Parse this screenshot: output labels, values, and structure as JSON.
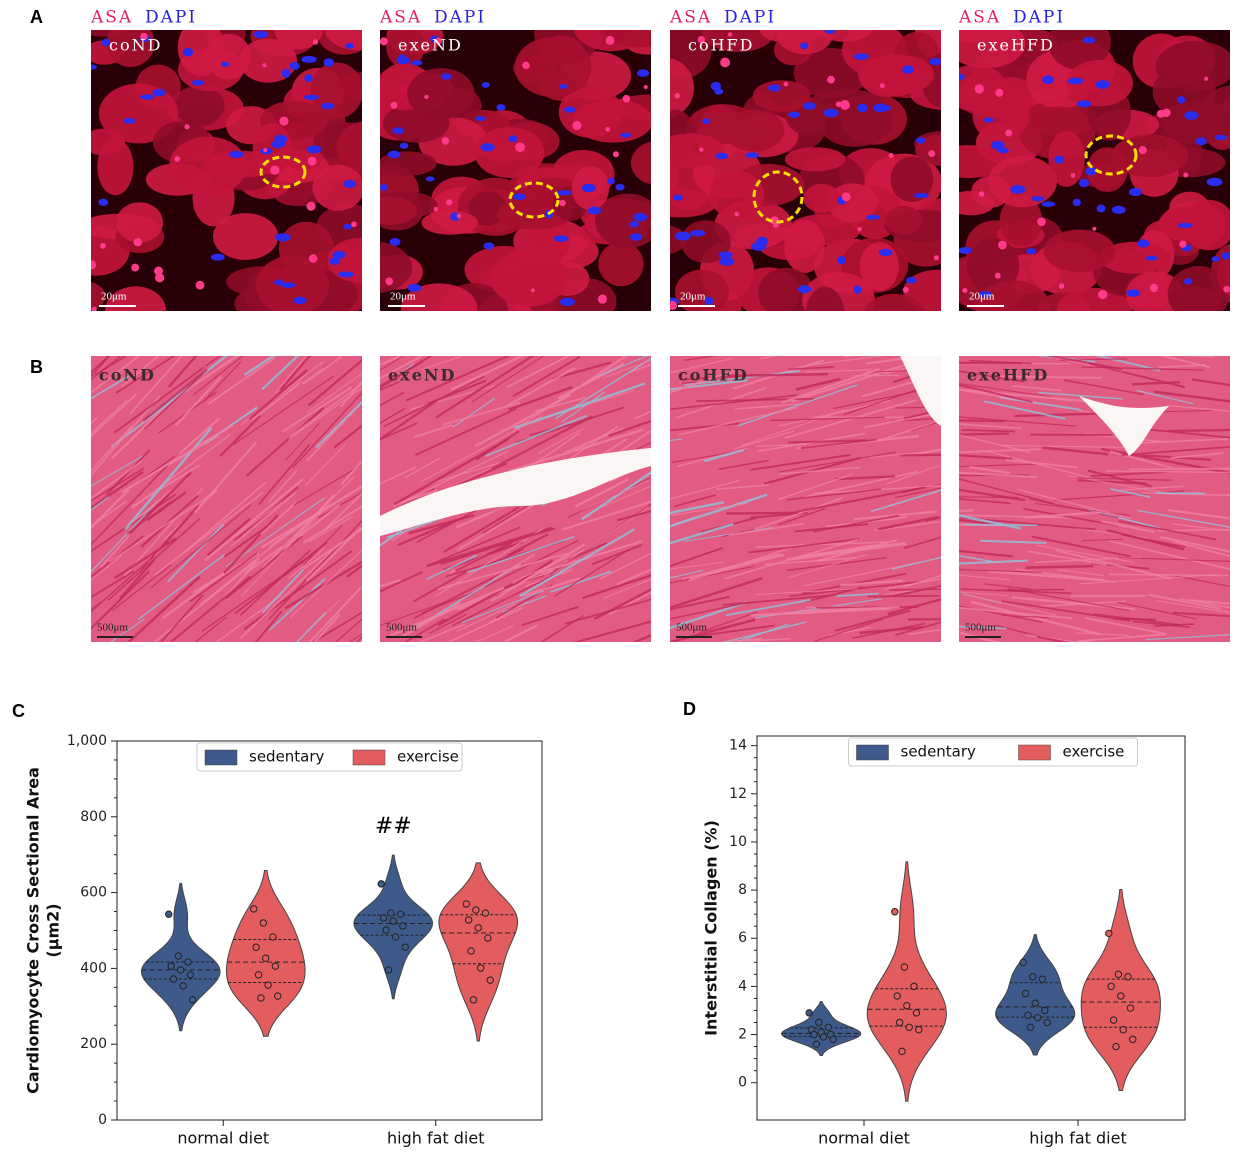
{
  "panel_a": {
    "letter": "A",
    "stain1": "ASA",
    "stain2": "DAPI",
    "images": [
      {
        "label": "coND",
        "scale": "20μm"
      },
      {
        "label": "exeND",
        "scale": "20μm"
      },
      {
        "label": "coHFD",
        "scale": "20μm"
      },
      {
        "label": "exeHFD",
        "scale": "20μm"
      }
    ]
  },
  "panel_b": {
    "letter": "B",
    "images": [
      {
        "label": "coND",
        "scale": "500μm"
      },
      {
        "label": "exeND",
        "scale": "500μm"
      },
      {
        "label": "coHFD",
        "scale": "500μm"
      },
      {
        "label": "exeHFD",
        "scale": "500μm"
      }
    ]
  },
  "chart_data": [
    {
      "panel": "C",
      "type": "violin",
      "ylabel_lines": [
        "Cardiomyocyte Cross Sectional Area",
        "(μm2)"
      ],
      "categories": [
        "normal diet",
        "high fat diet"
      ],
      "series": [
        {
          "name": "sedentary",
          "color": "#3d5a8a",
          "values": [
            [
              543,
              433,
              417,
              406,
              396,
              383,
              372,
              354,
              317
            ],
            [
              623,
              546,
              543,
              533,
              525,
              512,
              501,
              483,
              456,
              396
            ]
          ]
        },
        {
          "name": "exercise",
          "color": "#e35d5f",
          "values": [
            [
              557,
              520,
              483,
              456,
              427,
              406,
              383,
              356,
              327,
              322
            ],
            [
              570,
              554,
              546,
              528,
              507,
              480,
              446,
              401,
              369,
              317
            ]
          ]
        }
      ],
      "ylim": [
        0,
        1000
      ],
      "yticks": [
        0,
        200,
        400,
        600,
        800,
        {
          "value": 1000,
          "label": "1,000"
        }
      ],
      "legend": "upper center",
      "annotations": [
        {
          "text": "##",
          "category": 1,
          "series": 0
        }
      ]
    },
    {
      "panel": "D",
      "type": "violin",
      "ylabel_lines": [
        "Interstitial Collagen (%)"
      ],
      "categories": [
        "normal diet",
        "high fat diet"
      ],
      "series": [
        {
          "name": "sedentary",
          "color": "#3d5a8a",
          "values": [
            [
              2.9,
              2.5,
              2.3,
              2.2,
              2.1,
              2.0,
              2.0,
              1.9,
              1.8,
              1.6
            ],
            [
              5.0,
              4.4,
              4.3,
              3.7,
              3.3,
              3.0,
              2.8,
              2.7,
              2.5,
              2.3
            ]
          ]
        },
        {
          "name": "exercise",
          "color": "#e35d5f",
          "values": [
            [
              7.1,
              4.8,
              4.0,
              3.6,
              3.2,
              2.9,
              2.5,
              2.3,
              2.2,
              1.3
            ],
            [
              6.2,
              4.5,
              4.4,
              4.0,
              3.6,
              3.1,
              2.6,
              2.2,
              1.8,
              1.5
            ]
          ]
        }
      ],
      "ylim": [
        -1.55,
        14.4
      ],
      "yticks": [
        0,
        2,
        4,
        6,
        8,
        10,
        12,
        14
      ],
      "legend": "upper center",
      "annotations": []
    }
  ]
}
